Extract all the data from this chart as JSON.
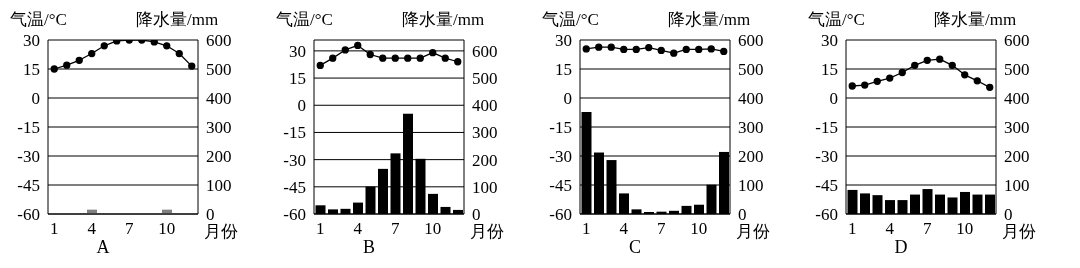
{
  "chart_data": [
    {
      "type": "line",
      "title": "A",
      "xlabel": "月份",
      "ylabel": "气温/°C",
      "y2label": "降水量/mm",
      "categories": [
        "1",
        null,
        null,
        "4",
        null,
        null,
        "7",
        null,
        null,
        "10",
        null,
        null
      ],
      "series": [
        {
          "type": "bar",
          "axis": "y2",
          "color": "#808080",
          "values": [
            0,
            0,
            0,
            15,
            0,
            0,
            0,
            0,
            0,
            15,
            0,
            0
          ]
        },
        {
          "color": "#000000",
          "values": [
            15,
            17,
            19.5,
            23,
            27,
            29.5,
            30,
            30,
            29,
            27,
            23,
            16.5
          ]
        }
      ],
      "ylim": [
        -60,
        30
      ],
      "yticks": [
        -60,
        -45,
        -30,
        -15,
        0,
        15,
        30
      ],
      "y2lim": [
        0,
        600
      ],
      "y2ticks": [
        0,
        100,
        200,
        300,
        400,
        500,
        600
      ],
      "grid": "y",
      "legend": false,
      "marker": "circle",
      "line_style": "solid"
    },
    {
      "type": "line",
      "title": "B",
      "xlabel": "月份",
      "ylabel": "气温/°C",
      "y2label": "降水量/mm",
      "categories": [
        "1",
        null,
        null,
        "4",
        null,
        null,
        "7",
        null,
        null,
        "10",
        null,
        null
      ],
      "series": [
        {
          "type": "bar",
          "axis": "y2",
          "color": "#000000",
          "values": [
            32,
            17,
            19,
            42,
            101,
            166,
            223,
            369,
            203,
            74,
            26,
            15
          ]
        },
        {
          "color": "#000000",
          "values": [
            22,
            26,
            30.5,
            33,
            28,
            26,
            26,
            26,
            26,
            29,
            26,
            24
          ]
        }
      ],
      "ylim": [
        -60,
        36
      ],
      "yticks": [
        -60,
        -45,
        -30,
        -15,
        0,
        15,
        30
      ],
      "y2lim": [
        0,
        640
      ],
      "y2ticks": [
        0,
        100,
        200,
        300,
        400,
        500,
        600
      ],
      "grid": "y",
      "legend": false,
      "marker": "circle",
      "line_style": "solid"
    },
    {
      "type": "line",
      "title": "C",
      "xlabel": "月份",
      "ylabel": "气温/°C",
      "y2label": "降水量/mm",
      "categories": [
        "1",
        null,
        null,
        "4",
        null,
        null,
        "7",
        null,
        null,
        "10",
        null,
        null
      ],
      "series": [
        {
          "type": "bar",
          "axis": "y2",
          "color": "#000000",
          "values": [
            352,
            212,
            186,
            71,
            16,
            7,
            8,
            11,
            28,
            32,
            101,
            214
          ]
        },
        {
          "color": "#000000",
          "values": [
            25.4,
            26.3,
            26.3,
            25.1,
            25.1,
            26.1,
            24.6,
            23.2,
            25.1,
            25.1,
            25.4,
            24.1
          ]
        }
      ],
      "ylim": [
        -60,
        30
      ],
      "yticks": [
        -60,
        -45,
        -30,
        -15,
        0,
        15,
        30
      ],
      "y2lim": [
        0,
        600
      ],
      "y2ticks": [
        0,
        100,
        200,
        300,
        400,
        500,
        600
      ],
      "grid": "y",
      "legend": false,
      "marker": "circle",
      "line_style": "solid"
    },
    {
      "type": "line",
      "title": "D",
      "xlabel": "月份",
      "ylabel": "气温/°C",
      "y2label": "降水量/mm",
      "categories": [
        "1",
        null,
        null,
        "4",
        null,
        null,
        "7",
        null,
        null,
        "10",
        null,
        null
      ],
      "series": [
        {
          "type": "bar",
          "axis": "y2",
          "color": "#000000",
          "values": [
            83,
            71,
            65,
            48,
            48,
            67,
            86,
            67,
            57,
            76,
            67,
            67
          ]
        },
        {
          "color": "#000000",
          "values": [
            6.2,
            6.7,
            8.6,
            10.3,
            13.2,
            16.9,
            19.5,
            20.1,
            16.9,
            12,
            8.9,
            5.5
          ]
        }
      ],
      "ylim": [
        -60,
        30
      ],
      "yticks": [
        -60,
        -45,
        -30,
        -15,
        0,
        15,
        30
      ],
      "y2lim": [
        0,
        600
      ],
      "y2ticks": [
        0,
        100,
        200,
        300,
        400,
        500,
        600
      ],
      "grid": "y",
      "legend": false,
      "marker": "circle",
      "line_style": "solid"
    }
  ]
}
